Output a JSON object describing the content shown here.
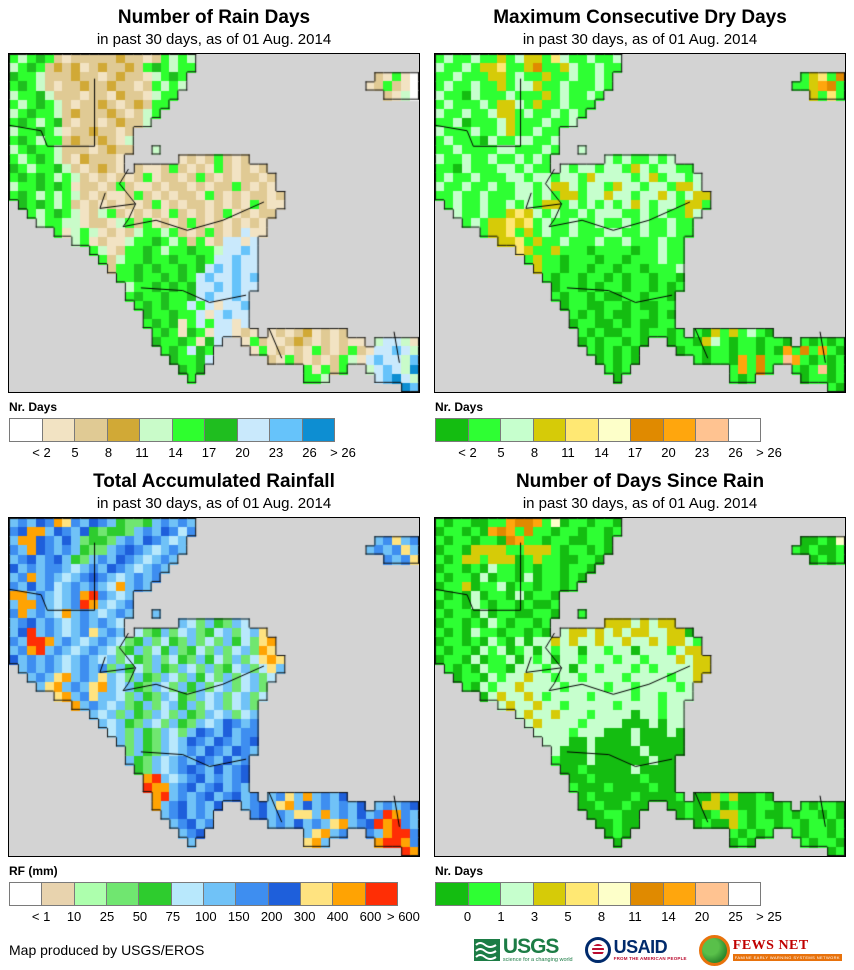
{
  "page": {
    "footer_text": "Map produced by USGS/EROS"
  },
  "map": {
    "sea_color": "#d3d3d3",
    "coast_color": "#111111",
    "border_color": "#000000",
    "grid_cols": 46,
    "grid_rows": 37,
    "country_borders": [
      [
        [
          0,
          7.8
        ],
        [
          3.6,
          8.4
        ],
        [
          4.3,
          10.1
        ],
        [
          9.6,
          10.1
        ]
      ],
      [
        [
          9.6,
          2.7
        ],
        [
          9.6,
          10.1
        ]
      ],
      [
        [
          13.4,
          12.6
        ],
        [
          12.4,
          14.2
        ],
        [
          14.2,
          16.4
        ],
        [
          10.2,
          16.9
        ],
        [
          10.8,
          15.2
        ]
      ],
      [
        [
          14.2,
          16.4
        ],
        [
          13.4,
          18.1
        ],
        [
          12.8,
          18.9
        ],
        [
          16.5,
          18.2
        ],
        [
          20,
          19.3
        ],
        [
          24,
          18.2
        ],
        [
          28.6,
          16.2
        ]
      ],
      [
        [
          14.8,
          25.6
        ],
        [
          19.5,
          25.9
        ],
        [
          22.5,
          27.2
        ],
        [
          26.6,
          26.4
        ]
      ],
      [
        [
          29.2,
          30.1
        ],
        [
          30.6,
          33.3
        ]
      ],
      [
        [
          43.2,
          30.4
        ],
        [
          43.8,
          33.8
        ]
      ]
    ]
  },
  "panels": [
    {
      "title": "Number of Rain Days",
      "subtitle": "in past 30 days, as of 01 Aug. 2014",
      "legend_label": "Nr. Days",
      "palette": [
        "#FFFFFF",
        "#F2E3C3",
        "#E0CA94",
        "#D1A936",
        "#C9FBC9",
        "#2EFF2E",
        "#1FBE1F",
        "#C9E9FC",
        "#66C3FA",
        "#0D8ED2"
      ],
      "legend_ticks": [
        "< 2",
        "5",
        "8",
        "11",
        "14",
        "17",
        "20",
        "23",
        "26",
        "> 26"
      ],
      "grid": [
        "fefgfcbcccccdccbcfefe.........................",
        "efgfcdcdbcdccdcfgfeff.........................",
        "gffecccdccbcdccbefgf.....................cbfba",
        "fgfecbccdccdccbcfefe....................bcfcba",
        "effgecccbccbdccbeff.......................cbea",
        "fefgfecbccdcbcdcff............................",
        "efgffecdcccdcbcef.............................",
        "fgfefgcbccbcdcce..............................",
        "effgfebccdccbc................................",
        "fgfeffcdccdcbe................................",
        "efgffecccbcdcc..e.............................",
        "fefgfecbdcccb......bcbcfcbc...................",
        "gfeffgecbcdcb.cbbcfcbcbfcbcbc.................",
        "fgfgfefecbcbcbcfbccbcfcbcbccbc................",
        "effgfgfbccbcfcbbcbccbcbccfcbcb................",
        "fgfefefecbcbbcfcbcbccbfcbcbccbc...............",
        ".gfgfefcbcbcbcbcfbcbccbcbcbfcbb...............",
        "..fefgfebcefcbcbcbfcbcbcfbcbcc................",
        "...effeebccbefcfbcbcfcbcbcbcb.................",
        ".....fbefebcbceffefcbcfcbchbb.................",
        ".......efbcbbeffgfefcfbchhbh..................",
        ".........febcffgfeffgffehhih..................",
        "..........fceffgffgffgfhhihh..................",
        "...........cffgfgffgfghihihh..................",
        "............ffgffgfgfhihhihi..................",
        ".............effgfgfghhihihh..................",
        ".............fgffgffghihhih...................",
        "..............fgfgffhfhbhhi...................",
        "...............gffgffhbhihh...................",
        "...............fgfgbfhfhhbh...................",
        "................fgfbgfbhhbcb.bcbcdbcbc........",
        "................gffgfbgh..bfcbbcdcbcbcbb.ehheb",
        ".................fgfhgf....bfbcbcbfcbcfcbhhihe",
        "..................gffgh......cbfcbcbcfebhihhei",
        "...................gfg...........fbfcf..ehihej",
        "....................f............ffe.....hijhe",
        "............................................ji"
      ]
    },
    {
      "title": "Maximum Consecutive Dry Days",
      "subtitle": "in past 30 days, as of 01 Aug. 2014",
      "legend_label": "Nr. Days",
      "palette": [
        "#14BD11",
        "#2EFF33",
        "#C6FFCD",
        "#D6CB08",
        "#FFE873",
        "#FDFFC9",
        "#E08A00",
        "#FFA60D",
        "#FFC391",
        "#FFFFFF"
      ],
      "legend_ticks": [
        "< 2",
        "5",
        "8",
        "11",
        "14",
        "17",
        "20",
        "23",
        "26",
        "> 26"
      ],
      "grid": [
        "bcbbcbbdbcddbecbbcbbc.........................",
        "cbbcbddebbdgbbdcbbcbb.........................",
        "bbcbbbddbcbbdbbcbbcb.....................bdebg",
        "bcbbcbbdbccdbbcbbbcb....................bbdhgb",
        "cbbacbbbcbbbdbcbbcb.......................dbeb",
        "bcbbbcbddcbdbbcbbb............................",
        "cbbcbbcddbcbbcbcb.............................",
        "bbcabbbcdbbbcbbc..............................",
        "cbbbcbbcdbbcbb................................",
        "bcbbbacbbccbbc................................",
        "bbcbbbbccbbbcb..c.............................",
        "cbbcbbcbbcbcb......cbcbbcbc...................",
        "bbacbbbccbcbb.cbccbccbdcbccbb.................",
        "bcbbcbbbccbccbccbdccccbcdbccbc................",
        "cbbcbbcbbccbcddcbccbdccbccbddc................",
        "bbcbbcbbbccbcbddbccdccbccdcbcdd...............",
        ".bcbbcbbcbcbddbcbcbcbcdcbccbddb...............",
        "..cbbcbbdedcbcbbcbcccbbcbcbbdc................",
        "...bcbddedebcbbcbbcbbcbcbbcbb.................",
        ".....bddebdbcbbcbbbccbbcbbcbb.................",
        ".......ddebdbbcbbbcbbcbbbcbb..................",
        ".........edbbdbbbabbbbabbcbb..................",
        "..........bdbbabbbabbabbbcbb..................",
        "...........dbbabbabbabbabbbc..................",
        "............babbabbababbabba..................",
        ".............abbababbabbabab..................",
        ".............babbabaabbabba...................",
        "..............abbaabbabaabb...................",
        "...............bababaabbaba...................",
        "...............abbaababaabb...................",
        "................babaabbabbab.badbdbcba........",
        "................ababbaba..abbadcbabbabba.babab",
        ".................bababa....abbabbabbabahbgbhba",
        "..................ababa......babbahbgbbihbabab",
        "...................bab...........bhbgb..babiab",
        "....................a............bab.....abbab",
        "............................................ba"
      ]
    },
    {
      "title": "Total Accumulated Rainfall",
      "subtitle": "in past 30 days, as of 01 Aug. 2014",
      "legend_label": "RF (mm)",
      "palette": [
        "#FFFFFF",
        "#E8D3AE",
        "#ADFFAD",
        "#70E670",
        "#2ECC2E",
        "#B8E8FC",
        "#70C2F7",
        "#3E8EF0",
        "#1E5FDB",
        "#FFE380",
        "#FFA303",
        "#FF2E05"
      ],
      "legend_ticks": [
        "< 1",
        "10",
        "25",
        "50",
        "75",
        "100",
        "150",
        "200",
        "300",
        "400",
        "600",
        "> 600"
      ],
      "grid": [
        "ghgihkjhgihgeddeghghg.........................",
        "hikkgihgiedeedghgihfh.........................",
        "gkkihgigdeedghgihgfg.....................ghjgh",
        "hgkihghgeddghihgfghg....................ghghjg",
        "ghighigedghgihgfghg.......................hghj",
        "ighghhgfghgihgfghg............................",
        "ghkghgfghihgfghgh.............................",
        "hgighfghghgfkghg..............................",
        "kkghgfghklhgfg................................",
        "gkkhgfghlkgfgh................................",
        "hkghgfkghgfghg..g.............................",
        "ghighgfghghgf......gfdgedgf...................",
        "gilghgfghjghg.fdegdfgdefgdfgj.................",
        "hgllkghgfghgfdegdfedgdfdgefdjk................",
        "ghklghgfghgfdegdfegdefdgdfgdkj................",
        "ighghgfghgfgdfedgdfedgefdgdfjkj...............",
        ".ghghgfghghdgefdgedgfdgdefgdfjg...............",
        "..ghgjkghgjgfdgedgfdgefdgdfgdf................",
        "...gjkghgjkgfgedgfdgegdfgdfgd.................",
        ".....jkghjggfdgedgfedgfgdfgdf.................",
        ".......kghgfgdegdfgegdfgdfgd..................",
        ".........gfgdgedgfdgedgfgdfg..................",
        "..........gfgedgfdgedgfgihgh..................",
        "...........fgdgedgfdgihgighh..................",
        "............gdgedgfgihgihghi..................",
        ".............dgedgfghgihgihg..................",
        ".............gedgfghgihgigh...................",
        "..............edgfghihgighi...................",
        "...............klgfghighghi...................",
        "...............lkkghighighg...................",
        "................klghghighigh.ghjgkghgi........",
        "................kghighgi..ghigjkgighghgi.ghghi",
        ".................ghighg....highgjjgkghgighlkhg",
        "..................ghigh......ghgighgjkghilklhg",
        "...................ghi...........gjkgh..hgkllh",
        "....................g............jkg.....kllkh",
        "............................................lk"
      ]
    },
    {
      "title": "Number of Days Since Rain",
      "subtitle": "in past 30 days, as of 01 Aug. 2014",
      "legend_label": "Nr. Days",
      "palette": [
        "#14BD11",
        "#2EFF33",
        "#C6FFCD",
        "#D6CB08",
        "#FFE873",
        "#FDFFC9",
        "#E08A00",
        "#FFA60D",
        "#FFC391",
        "#FFFFFF"
      ],
      "legend_ticks": [
        "0",
        "1",
        "3",
        "5",
        "8",
        "11",
        "14",
        "20",
        "25",
        "> 25"
      ],
      "grid": [
        "babbaabbhgghbfabbabba.........................",
        "abbabahghbgbbabbabbab.........................",
        "babbabbaghbbabbaabba.....................aabaf",
        "abbaddddbbdddbabbaba....................babaab",
        "babddbdddabdbbaabba.......................abab",
        "abbabacbbababbabba............................",
        "babbacabbacabbaba.............................",
        "abbdabbcabbabbab..............................",
        "babacabbacabba................................",
        "abbacbabbabaab................................",
        "babbacabbaabba..b.............................",
        "abbabacbabbab......dddcdcdd...................",
        "babacbbabbaba.cddcdcdcddccdda.................",
        "abbabacbacaccdcdccdccdccdcddcb................",
        "babbacbcabcacbccaccbccacccbcdd................",
        "abbacabbcacbcaccbcccbccbcccdcdd...............",
        ".babacbbacccbccaccbcccbcbccccdd...............",
        "..abbacbccdccbccbccccbccccbccd................",
        "...bacbccdccccbccccbccbccccbc.................",
        ".....acdccdcbccccbccccbccbccc.................",
        ".......cdccdccbcccccbccccbcc..................",
        ".........cdccdcccbccccaccbcc..................",
        "..........cdccccbccccaaacacc..................",
        "...........ccccbcccaaacaaaca..................",
        "............cccaacaaaacaaaaa..................",
        ".............caaacaaaaacaaaa..................",
        ".............baaacaaaaaacaa...................",
        "..............aabaaaaacaaaa...................",
        "...............aabaaaaabaaa...................",
        "...............baaabaaaabaa...................",
        "................abaaaabaaaab.aadbdaaba........",
        "................aabaabaa..aabaddabaabbab.babba",
        ".................aabbaa....abaabddbabaababbaba",
        "..................aabaa......abaadbabbabbabbab",
        "...................aba...........babab..babbab",
        "....................a............aba.....babba",
        "............................................ab"
      ]
    }
  ],
  "logos": {
    "usgs_text": "USGS",
    "usgs_tagline": "science for a changing world",
    "usaid_text": "USAID",
    "usaid_tagline": "FROM THE AMERICAN PEOPLE",
    "fewsnet_text": "FEWS NET",
    "fewsnet_tagline": "FAMINE EARLY WARNING SYSTEMS NETWORK"
  }
}
